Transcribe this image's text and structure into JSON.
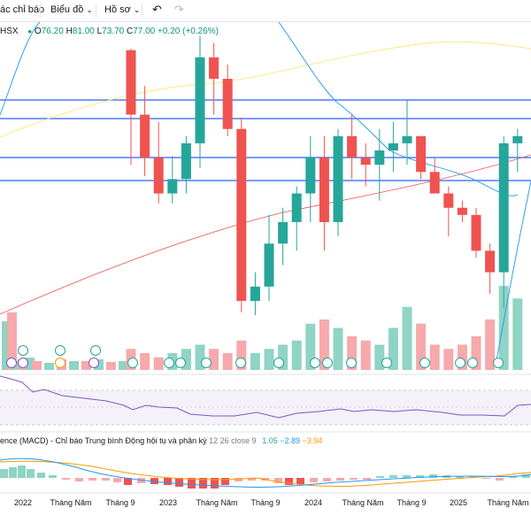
{
  "toolbar": {
    "indicators_label": "ác chỉ báo",
    "chart_type_label": "Biểu đồ",
    "profile_label": "Hồ sơ"
  },
  "symbol": {
    "exchange_label": "HSX",
    "o_label": "O",
    "o": "76.20",
    "h_label": "H",
    "h": "81.00",
    "l_label": "L",
    "l": "73.70",
    "c_label": "C",
    "c": "77.00",
    "change": "+0.20 (+0.26%)"
  },
  "colors": {
    "up": "#26a69a",
    "down": "#ef5350",
    "vol_up": "#8fd4c5",
    "vol_down": "#f7a9ab",
    "hline": "#2962ff",
    "ma_short": "#2196f3",
    "ma_mid": "#fbe878",
    "ma_long": "#ef5350",
    "rsi": "#7e57c2",
    "macd": "#2196f3",
    "signal": "#ff9800"
  },
  "macd": {
    "title": "ence (MACD) - Chỉ báo Trung bình Động hội tụ và phân kỳ",
    "params": "12 26 close 9",
    "hist": "1.05",
    "macd": "−2.89",
    "signal": "−3.94"
  },
  "time_axis": [
    "2022",
    "Tháng Năm",
    "Tháng 9",
    "2023",
    "Tháng Năm",
    "Tháng 9",
    "2024",
    "Tháng Năm",
    "Tháng 9",
    "2025",
    "Tháng Năm"
  ],
  "chart_data": {
    "type": "candlestick",
    "candles": [
      {
        "o": 81.5,
        "h": 81.6,
        "l": 73.5,
        "c": 77.0
      },
      {
        "o": 77.0,
        "h": 79.0,
        "l": 72.7,
        "c": 74.0
      },
      {
        "o": 74.0,
        "h": 76.5,
        "l": 70.8,
        "c": 71.5
      },
      {
        "o": 71.5,
        "h": 74.1,
        "l": 70.8,
        "c": 72.5
      },
      {
        "o": 72.5,
        "h": 75.5,
        "l": 71.5,
        "c": 75.0
      },
      {
        "o": 75.0,
        "h": 82.5,
        "l": 73.3,
        "c": 81.0
      },
      {
        "o": 81.0,
        "h": 82.0,
        "l": 77.0,
        "c": 79.5
      },
      {
        "o": 79.5,
        "h": 80.5,
        "l": 75.5,
        "c": 76.0
      },
      {
        "o": 76.0,
        "h": 76.8,
        "l": 63.2,
        "c": 64.0
      },
      {
        "o": 64.0,
        "h": 66.0,
        "l": 63.0,
        "c": 65.0
      },
      {
        "o": 65.0,
        "h": 70.0,
        "l": 64.0,
        "c": 68.0
      },
      {
        "o": 68.0,
        "h": 70.5,
        "l": 66.5,
        "c": 69.5
      },
      {
        "o": 69.5,
        "h": 72.0,
        "l": 67.5,
        "c": 71.5
      },
      {
        "o": 71.5,
        "h": 75.5,
        "l": 69.5,
        "c": 74.0
      },
      {
        "o": 74.0,
        "h": 75.5,
        "l": 67.5,
        "c": 69.5
      },
      {
        "o": 69.5,
        "h": 76.0,
        "l": 68.5,
        "c": 75.5
      },
      {
        "o": 75.5,
        "h": 77.0,
        "l": 72.5,
        "c": 74.0
      },
      {
        "o": 74.0,
        "h": 75.0,
        "l": 72.0,
        "c": 73.5
      },
      {
        "o": 73.5,
        "h": 76.0,
        "l": 71.0,
        "c": 74.5
      },
      {
        "o": 74.5,
        "h": 76.5,
        "l": 73.0,
        "c": 75.0
      },
      {
        "o": 75.0,
        "h": 78.0,
        "l": 73.5,
        "c": 75.5
      },
      {
        "o": 75.5,
        "h": 75.5,
        "l": 72.5,
        "c": 73.0
      },
      {
        "o": 73.0,
        "h": 74.0,
        "l": 71.5,
        "c": 71.5
      },
      {
        "o": 71.5,
        "h": 72.0,
        "l": 68.5,
        "c": 70.5
      },
      {
        "o": 70.5,
        "h": 71.0,
        "l": 69.5,
        "c": 70.0
      },
      {
        "o": 70.0,
        "h": 70.5,
        "l": 67.0,
        "c": 67.5
      },
      {
        "o": 67.5,
        "h": 68.0,
        "l": 64.5,
        "c": 66.0
      },
      {
        "o": 66.0,
        "h": 75.5,
        "l": 63.5,
        "c": 75.0
      },
      {
        "o": 75.0,
        "h": 76.0,
        "l": 73.0,
        "c": 75.5
      }
    ],
    "volume_relative": [
      0.25,
      0.2,
      0.15,
      0.2,
      0.25,
      0.3,
      0.25,
      0.2,
      0.35,
      0.2,
      0.25,
      0.3,
      0.35,
      0.55,
      0.6,
      0.5,
      0.4,
      0.35,
      0.3,
      0.5,
      0.75,
      0.55,
      0.3,
      0.25,
      0.3,
      0.4,
      0.6,
      1.0,
      0.85
    ]
  }
}
